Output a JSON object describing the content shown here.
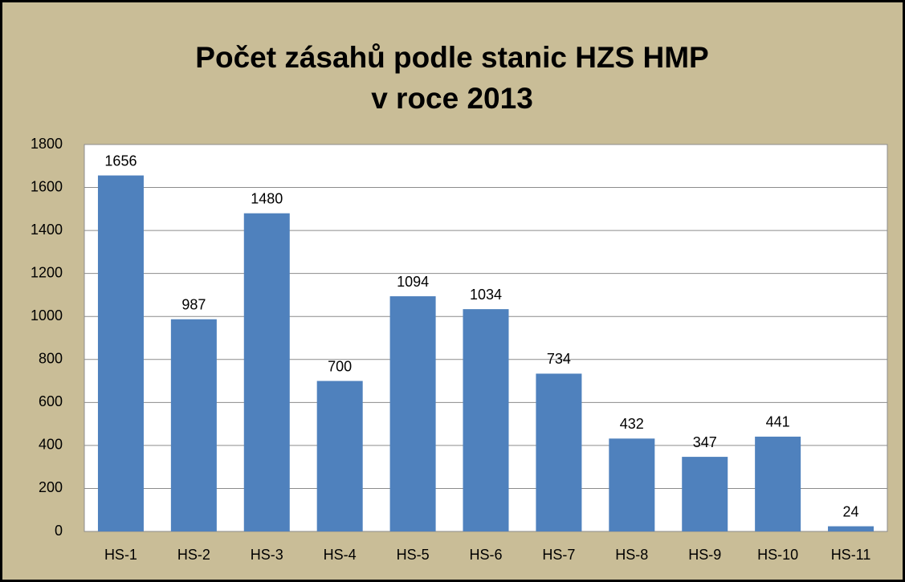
{
  "chart_data": {
    "type": "bar",
    "title": [
      "Počet zásahů podle stanic HZS HMP",
      "v roce 2013"
    ],
    "categories": [
      "HS-1",
      "HS-2",
      "HS-3",
      "HS-4",
      "HS-5",
      "HS-6",
      "HS-7",
      "HS-8",
      "HS-9",
      "HS-10",
      "HS-11"
    ],
    "values": [
      1656,
      987,
      1480,
      700,
      1094,
      1034,
      734,
      432,
      347,
      441,
      24
    ],
    "color": "#4f81bd",
    "ylim": [
      0,
      1800
    ],
    "yticks": [
      0,
      200,
      400,
      600,
      800,
      1000,
      1200,
      1400,
      1600,
      1800
    ],
    "grid": true
  }
}
